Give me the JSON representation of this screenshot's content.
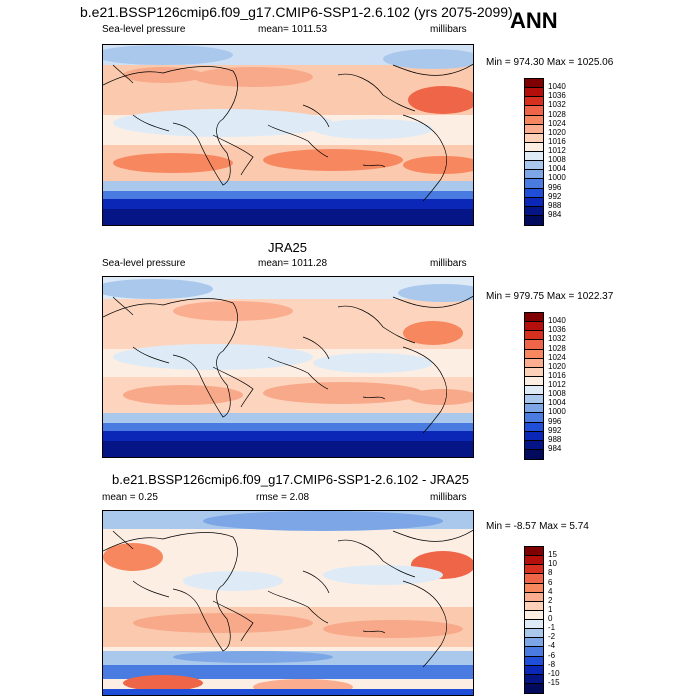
{
  "header": {
    "title": "b.e21.BSSP126cmip6.f09_g17.CMIP6-SSP1-2.6.102 (yrs 2075-2099)",
    "season": "ANN"
  },
  "panels": [
    {
      "title": "",
      "left_label": "Sea-level pressure",
      "center_label": "mean= 1011.53",
      "right_label": "millibars",
      "minmax": "Min = 974.30 Max = 1025.06",
      "colorbar": {
        "labels": [
          "1040",
          "1036",
          "1032",
          "1028",
          "1024",
          "1020",
          "1016",
          "1012",
          "1008",
          "1004",
          "1000",
          "996",
          "992",
          "988",
          "984"
        ],
        "colors": [
          "#7f0000",
          "#b40f0a",
          "#d7301f",
          "#ef6548",
          "#f7875f",
          "#fbae8f",
          "#fdd0b8",
          "#fdeee4",
          "#deebf7",
          "#a9c8ec",
          "#7ca6e6",
          "#4a7be0",
          "#1f4fd8",
          "#0a27b8",
          "#051585",
          "#020a5c"
        ]
      }
    },
    {
      "title": "JRA25",
      "left_label": "Sea-level pressure",
      "center_label": "mean= 1011.28",
      "right_label": "millibars",
      "minmax": "Min = 979.75 Max = 1022.37",
      "colorbar": {
        "labels": [
          "1040",
          "1036",
          "1032",
          "1028",
          "1024",
          "1020",
          "1016",
          "1012",
          "1008",
          "1004",
          "1000",
          "996",
          "992",
          "988",
          "984"
        ],
        "colors": [
          "#7f0000",
          "#b40f0a",
          "#d7301f",
          "#ef6548",
          "#f7875f",
          "#fbae8f",
          "#fdd0b8",
          "#fdeee4",
          "#deebf7",
          "#a9c8ec",
          "#7ca6e6",
          "#4a7be0",
          "#1f4fd8",
          "#0a27b8",
          "#051585",
          "#020a5c"
        ]
      }
    },
    {
      "title": "b.e21.BSSP126cmip6.f09_g17.CMIP6-SSP1-2.6.102 - JRA25",
      "left_label": "mean =   0.25",
      "center_label": "rmse =   2.08",
      "right_label": "millibars",
      "minmax": "Min =  -8.57 Max =   5.74",
      "colorbar": {
        "labels": [
          "15",
          "10",
          "8",
          "6",
          "4",
          "2",
          "1",
          "0",
          "-1",
          "-2",
          "-4",
          "-6",
          "-8",
          "-10",
          "-15"
        ],
        "colors": [
          "#7f0000",
          "#b40f0a",
          "#d7301f",
          "#ef6548",
          "#f7875f",
          "#fbae8f",
          "#fdd0b8",
          "#fdeee4",
          "#deebf7",
          "#a9c8ec",
          "#7ca6e6",
          "#4a7be0",
          "#1f4fd8",
          "#0a27b8",
          "#051585",
          "#020a5c"
        ]
      }
    }
  ]
}
